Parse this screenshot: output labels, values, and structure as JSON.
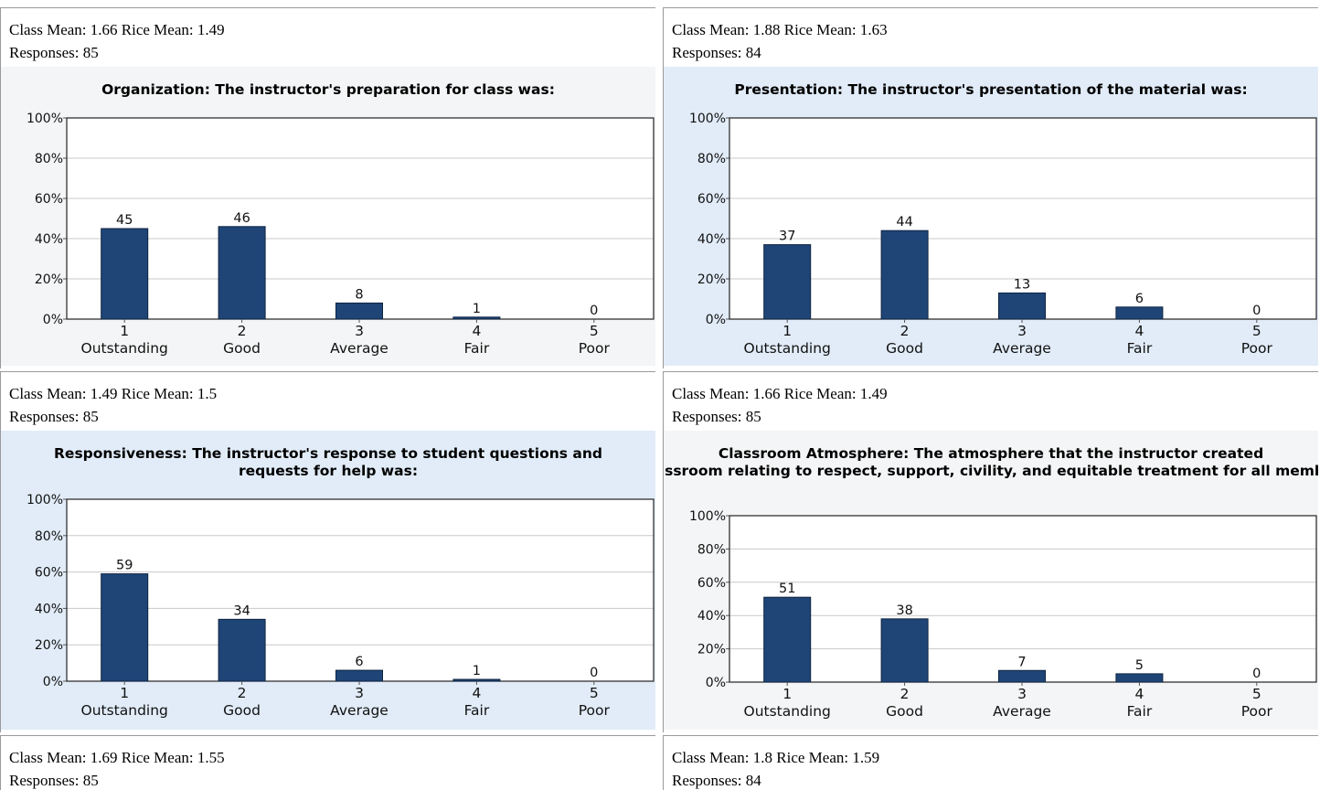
{
  "panels": [
    {
      "stats_line1": "Class Mean: 1.66 Rice Mean: 1.49",
      "stats_line2": "Responses: 85",
      "chart_data": {
        "type": "bar",
        "title": "Organization: The instructor's preparation for class was:",
        "categories": [
          "1",
          "2",
          "3",
          "4",
          "5"
        ],
        "category_labels": [
          "Outstanding",
          "Good",
          "Average",
          "Fair",
          "Poor"
        ],
        "values": [
          45,
          46,
          8,
          1,
          0
        ],
        "yticks": [
          "0%",
          "20%",
          "40%",
          "60%",
          "80%",
          "100%"
        ],
        "ylim": [
          0,
          100
        ],
        "grid": true
      }
    },
    {
      "stats_line1": "Class Mean: 1.88 Rice Mean: 1.63",
      "stats_line2": "Responses: 84",
      "chart_data": {
        "type": "bar",
        "title": "Presentation: The instructor's presentation of the material was:",
        "categories": [
          "1",
          "2",
          "3",
          "4",
          "5"
        ],
        "category_labels": [
          "Outstanding",
          "Good",
          "Average",
          "Fair",
          "Poor"
        ],
        "values": [
          37,
          44,
          13,
          6,
          0
        ],
        "yticks": [
          "0%",
          "20%",
          "40%",
          "60%",
          "80%",
          "100%"
        ],
        "ylim": [
          0,
          100
        ],
        "grid": true
      }
    },
    {
      "stats_line1": "Class Mean: 1.49 Rice Mean: 1.5",
      "stats_line2": "Responses: 85",
      "chart_data": {
        "type": "bar",
        "title": "Responsiveness: The instructor's response to student questions and requests for help was:",
        "categories": [
          "1",
          "2",
          "3",
          "4",
          "5"
        ],
        "category_labels": [
          "Outstanding",
          "Good",
          "Average",
          "Fair",
          "Poor"
        ],
        "values": [
          59,
          34,
          6,
          1,
          0
        ],
        "yticks": [
          "0%",
          "20%",
          "40%",
          "60%",
          "80%",
          "100%"
        ],
        "ylim": [
          0,
          100
        ],
        "grid": true
      }
    },
    {
      "stats_line1": "Class Mean: 1.66 Rice Mean: 1.49",
      "stats_line2": "Responses: 85",
      "chart_data": {
        "type": "bar",
        "title": "Classroom Atmosphere: The atmosphere that the instructor created in the classroom relating to respect, support, civility, and equitable treatment for all members was:",
        "categories": [
          "1",
          "2",
          "3",
          "4",
          "5"
        ],
        "category_labels": [
          "Outstanding",
          "Good",
          "Average",
          "Fair",
          "Poor"
        ],
        "values": [
          51,
          38,
          7,
          5,
          0
        ],
        "yticks": [
          "0%",
          "20%",
          "40%",
          "60%",
          "80%",
          "100%"
        ],
        "ylim": [
          0,
          100
        ],
        "grid": true
      }
    },
    {
      "stats_line1": "Class Mean: 1.69 Rice Mean: 1.55",
      "stats_line2": "Responses: 85"
    },
    {
      "stats_line1": "Class Mean: 1.8 Rice Mean: 1.59",
      "stats_line2": "Responses: 84"
    }
  ],
  "colors": {
    "bar": "#1f4577",
    "panel_blue": "#e1ecf8",
    "panel_gray": "#f4f5f6",
    "grid": "#c8c8c8"
  }
}
